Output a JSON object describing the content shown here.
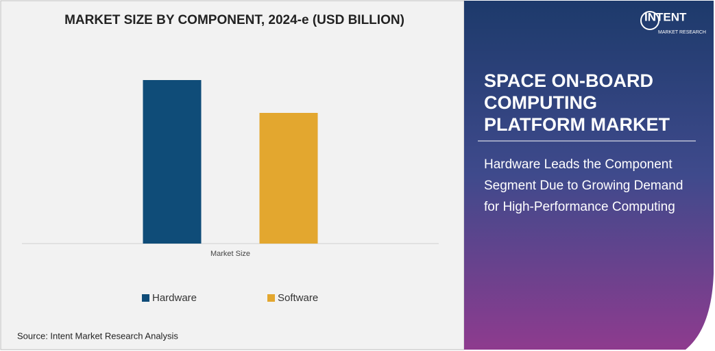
{
  "chart_data": {
    "type": "bar",
    "title": "MARKET SIZE BY COMPONENT, 2024-e (USD BILLION)",
    "categories": [
      "Market Size"
    ],
    "series": [
      {
        "name": "Hardware",
        "color": "#0f4c78",
        "values": [
          2.39
        ]
      },
      {
        "name": "Software",
        "color": "#e3a72f",
        "values": [
          1.91
        ]
      }
    ],
    "ylim": [
      0,
      2.8
    ]
  },
  "source": "Source: Intent Market Research Analysis",
  "brand": {
    "name": "INTENT",
    "tagline": "MARKET RESEARCH"
  },
  "report_title": "SPACE ON-BOARD COMPUTING PLATFORM MARKET",
  "headline": "Hardware Leads the Component Segment Due to Growing Demand for High-Performance Computing"
}
